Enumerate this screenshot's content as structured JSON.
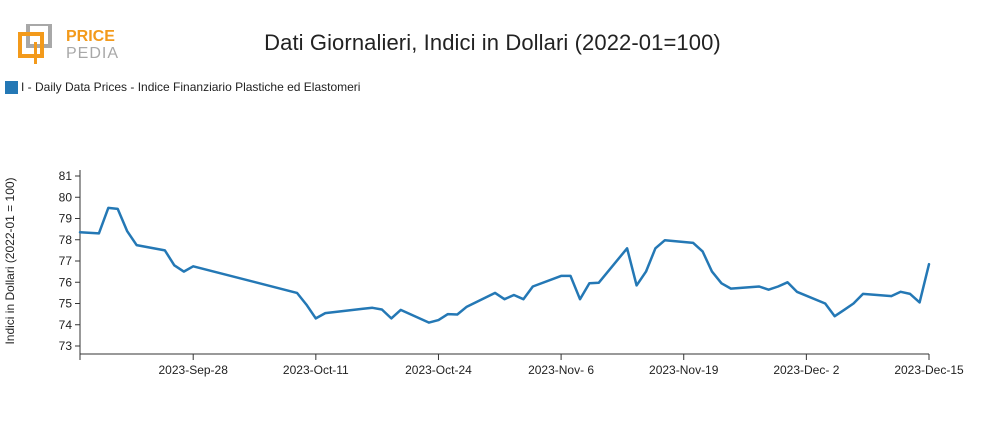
{
  "logo": {
    "line1": "PRICE",
    "line2": "PEDIA"
  },
  "title": "Dati Giornalieri, Indici in Dollari (2022-01=100)",
  "colors": {
    "series": "#2478b5",
    "logo_orange": "#f39a1b",
    "logo_gray": "#9a9a9a"
  },
  "chart_data": {
    "type": "line",
    "title": "Dati Giornalieri, Indici in Dollari (2022-01=100)",
    "ylabel": "Indici in Dollari (2022-01 = 100)",
    "xlabel": "",
    "ylim": [
      73,
      81
    ],
    "yticks": [
      73,
      74,
      75,
      76,
      77,
      78,
      79,
      80,
      81
    ],
    "xlim": [
      "2023-09-16",
      "2023-12-15"
    ],
    "xticks": [
      "2023-09-28",
      "2023-10-11",
      "2023-10-24",
      "2023-11-06",
      "2023-11-19",
      "2023-12-02",
      "2023-12-15"
    ],
    "xtick_labels": [
      "2023-Sep-28",
      "2023-Oct-11",
      "2023-Oct-24",
      "2023-Nov- 6",
      "2023-Nov-19",
      "2023-Dec- 2",
      "2023-Dec-15"
    ],
    "legend": "top-left",
    "grid": false,
    "series": [
      {
        "name": "I - Daily Data Prices - Indice Finanziario Plastiche ed Elastomeri",
        "x": [
          "2023-09-16",
          "2023-09-18",
          "2023-09-19",
          "2023-09-20",
          "2023-09-21",
          "2023-09-22",
          "2023-09-25",
          "2023-09-26",
          "2023-09-27",
          "2023-09-28",
          "2023-10-09",
          "2023-10-10",
          "2023-10-11",
          "2023-10-12",
          "2023-10-16",
          "2023-10-17",
          "2023-10-18",
          "2023-10-19",
          "2023-10-20",
          "2023-10-23",
          "2023-10-24",
          "2023-10-25",
          "2023-10-26",
          "2023-10-27",
          "2023-10-30",
          "2023-10-31",
          "2023-11-01",
          "2023-11-02",
          "2023-11-03",
          "2023-11-06",
          "2023-11-07",
          "2023-11-08",
          "2023-11-09",
          "2023-11-10",
          "2023-11-13",
          "2023-11-14",
          "2023-11-15",
          "2023-11-16",
          "2023-11-17",
          "2023-11-20",
          "2023-11-21",
          "2023-11-22",
          "2023-11-23",
          "2023-11-24",
          "2023-11-27",
          "2023-11-28",
          "2023-11-29",
          "2023-11-30",
          "2023-12-01",
          "2023-12-04",
          "2023-12-05",
          "2023-12-06",
          "2023-12-07",
          "2023-12-08",
          "2023-12-11",
          "2023-12-12",
          "2023-12-13",
          "2023-12-14",
          "2023-12-15"
        ],
        "values": [
          78.35,
          78.3,
          79.5,
          79.45,
          78.4,
          77.75,
          77.5,
          76.8,
          76.5,
          76.75,
          75.5,
          74.95,
          74.3,
          74.55,
          74.75,
          74.8,
          74.72,
          74.3,
          74.7,
          74.1,
          74.22,
          74.5,
          74.48,
          74.85,
          75.5,
          75.2,
          75.4,
          75.2,
          75.8,
          76.3,
          76.3,
          75.2,
          75.95,
          75.98,
          77.6,
          75.85,
          76.5,
          77.6,
          77.98,
          77.85,
          77.45,
          76.5,
          75.95,
          75.7,
          75.8,
          75.65,
          75.8,
          76.0,
          75.55,
          75.0,
          74.4,
          74.7,
          75.0,
          75.45,
          75.35,
          75.55,
          75.45,
          75.05,
          76.85
        ]
      }
    ]
  }
}
